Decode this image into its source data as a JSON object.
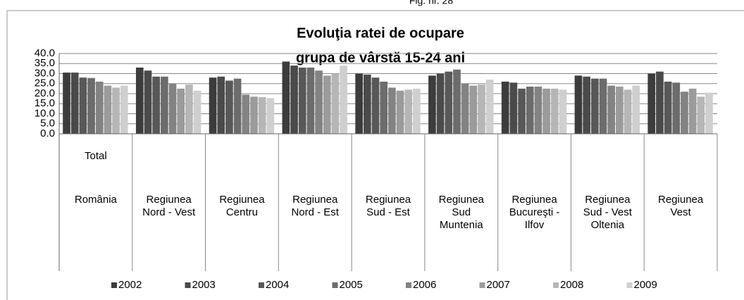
{
  "chart_data": {
    "type": "bar",
    "caption": "Fig. nr. 28",
    "title": [
      "Evoluţia ratei de ocupare",
      "grupa de vârstă 15-24 ani"
    ],
    "categories": [
      [
        "Total",
        "România"
      ],
      [
        "Regiunea",
        "Nord - Vest"
      ],
      [
        "Regiunea",
        "Centru"
      ],
      [
        "Regiunea",
        "Nord - Est"
      ],
      [
        "Regiunea",
        "Sud - Est"
      ],
      [
        "Regiunea",
        "Sud",
        "Muntenia"
      ],
      [
        "Regiunea",
        "Bucureşti -",
        "Ilfov"
      ],
      [
        "Regiunea",
        "Sud - Vest",
        "Oltenia"
      ],
      [
        "Regiunea",
        "Vest"
      ]
    ],
    "series": [
      {
        "name": "2002",
        "color": "#3c3c3c",
        "values": [
          30.5,
          33,
          28,
          36,
          30,
          29,
          26,
          29,
          30
        ]
      },
      {
        "name": "2003",
        "color": "#4a4a4a",
        "values": [
          30.5,
          31.5,
          28.5,
          34,
          29.5,
          30,
          25.5,
          28.5,
          31
        ]
      },
      {
        "name": "2004",
        "color": "#585858",
        "values": [
          28,
          28.5,
          26.5,
          33,
          28,
          31,
          22.5,
          27.5,
          26
        ]
      },
      {
        "name": "2005",
        "color": "#6c6c6c",
        "values": [
          27.8,
          28.5,
          27.5,
          33,
          26,
          32,
          23.5,
          27.5,
          25.5
        ]
      },
      {
        "name": "2006",
        "color": "#838383",
        "values": [
          26,
          25,
          19.5,
          31.5,
          23,
          25,
          23.5,
          24,
          21
        ]
      },
      {
        "name": "2007",
        "color": "#9b9b9b",
        "values": [
          24,
          22.5,
          18.5,
          29,
          21.5,
          24,
          22.5,
          23.5,
          22.5
        ]
      },
      {
        "name": "2008",
        "color": "#b6b6b6",
        "values": [
          23,
          24.5,
          18.3,
          30,
          22,
          24.5,
          22.5,
          22,
          18.5
        ]
      },
      {
        "name": "2009",
        "color": "#cfcfcf",
        "values": [
          24,
          21.5,
          17.8,
          34,
          22.5,
          27,
          22,
          24,
          20.5
        ]
      }
    ],
    "ylim": [
      0,
      40
    ],
    "yticks": [
      {
        "value": 0,
        "label": "0.0"
      },
      {
        "value": 5,
        "label": "5.0"
      },
      {
        "value": 10,
        "label": "10.0"
      },
      {
        "value": 15,
        "label": "15.0"
      },
      {
        "value": 20,
        "label": "20.0"
      },
      {
        "value": 25,
        "label": "25.0"
      },
      {
        "value": 30,
        "label": "30.0"
      },
      {
        "value": 35,
        "label": "35.0"
      },
      {
        "value": 40,
        "label": "40.0"
      }
    ],
    "grid": true,
    "legend": "bottom"
  }
}
